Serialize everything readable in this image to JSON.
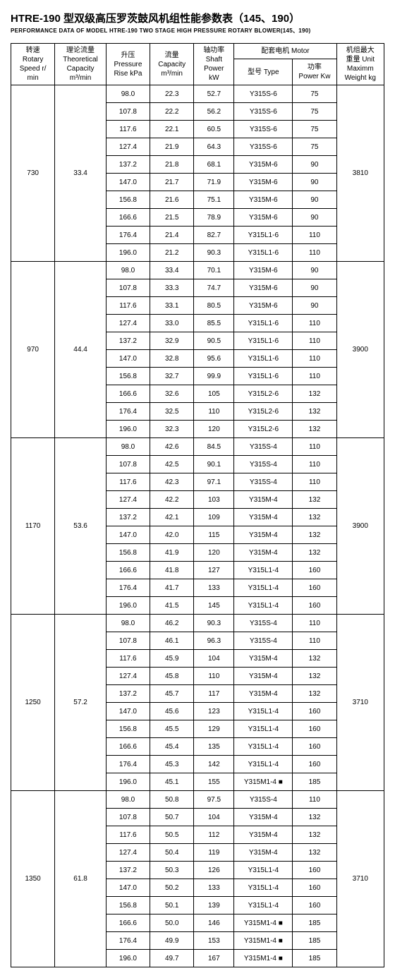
{
  "title_main": "HTRE-190 型双级高压罗茨鼓风机组性能参数表（145、190）",
  "title_sub": "PERFORMANCE DATA OF MODEL HTRE-190 TWO STAGE HIGH PRESSURE ROTARY BLOWER(145、190)",
  "headers": {
    "speed": "转速\nRotary\nSpeed r/\nmin",
    "theoretical": "理论流量\nTheoretical\nCapacity\nm³/min",
    "pressure": "升压\nPressure\nRise kPa",
    "capacity": "流量\nCapacity\nm³/min",
    "shaft": "轴功率\nShaft\nPower\nkW",
    "motor_group": "配套电机 Motor",
    "motor_type": "型号 Type",
    "motor_power": "功率\nPower Kw",
    "weight": "机组最大\n重量 Unit\nMaximm\nWeight kg"
  },
  "groups": [
    {
      "speed": "730",
      "theoretical": "33.4",
      "weight": "3810",
      "rows": [
        {
          "p": "98.0",
          "c": "22.3",
          "s": "52.7",
          "t": "Y315S-6",
          "pw": "75"
        },
        {
          "p": "107.8",
          "c": "22.2",
          "s": "56.2",
          "t": "Y315S-6",
          "pw": "75"
        },
        {
          "p": "117.6",
          "c": "22.1",
          "s": "60.5",
          "t": "Y315S-6",
          "pw": "75"
        },
        {
          "p": "127.4",
          "c": "21.9",
          "s": "64.3",
          "t": "Y315S-6",
          "pw": "75"
        },
        {
          "p": "137.2",
          "c": "21.8",
          "s": "68.1",
          "t": "Y315M-6",
          "pw": "90"
        },
        {
          "p": "147.0",
          "c": "21.7",
          "s": "71.9",
          "t": "Y315M-6",
          "pw": "90"
        },
        {
          "p": "156.8",
          "c": "21.6",
          "s": "75.1",
          "t": "Y315M-6",
          "pw": "90"
        },
        {
          "p": "166.6",
          "c": "21.5",
          "s": "78.9",
          "t": "Y315M-6",
          "pw": "90"
        },
        {
          "p": "176.4",
          "c": "21.4",
          "s": "82.7",
          "t": "Y315L1-6",
          "pw": "110"
        },
        {
          "p": "196.0",
          "c": "21.2",
          "s": "90.3",
          "t": "Y315L1-6",
          "pw": "110"
        }
      ]
    },
    {
      "speed": "970",
      "theoretical": "44.4",
      "weight": "3900",
      "rows": [
        {
          "p": "98.0",
          "c": "33.4",
          "s": "70.1",
          "t": "Y315M-6",
          "pw": "90"
        },
        {
          "p": "107.8",
          "c": "33.3",
          "s": "74.7",
          "t": "Y315M-6",
          "pw": "90"
        },
        {
          "p": "117.6",
          "c": "33.1",
          "s": "80.5",
          "t": "Y315M-6",
          "pw": "90"
        },
        {
          "p": "127.4",
          "c": "33.0",
          "s": "85.5",
          "t": "Y315L1-6",
          "pw": "110"
        },
        {
          "p": "137.2",
          "c": "32.9",
          "s": "90.5",
          "t": "Y315L1-6",
          "pw": "110"
        },
        {
          "p": "147.0",
          "c": "32.8",
          "s": "95.6",
          "t": "Y315L1-6",
          "pw": "110"
        },
        {
          "p": "156.8",
          "c": "32.7",
          "s": "99.9",
          "t": "Y315L1-6",
          "pw": "110"
        },
        {
          "p": "166.6",
          "c": "32.6",
          "s": "105",
          "t": "Y315L2-6",
          "pw": "132"
        },
        {
          "p": "176.4",
          "c": "32.5",
          "s": "110",
          "t": "Y315L2-6",
          "pw": "132"
        },
        {
          "p": "196.0",
          "c": "32.3",
          "s": "120",
          "t": "Y315L2-6",
          "pw": "132"
        }
      ]
    },
    {
      "speed": "1170",
      "theoretical": "53.6",
      "weight": "3900",
      "rows": [
        {
          "p": "98.0",
          "c": "42.6",
          "s": "84.5",
          "t": "Y315S-4",
          "pw": "110"
        },
        {
          "p": "107.8",
          "c": "42.5",
          "s": "90.1",
          "t": "Y315S-4",
          "pw": "110"
        },
        {
          "p": "117.6",
          "c": "42.3",
          "s": "97.1",
          "t": "Y315S-4",
          "pw": "110"
        },
        {
          "p": "127.4",
          "c": "42.2",
          "s": "103",
          "t": "Y315M-4",
          "pw": "132"
        },
        {
          "p": "137.2",
          "c": "42.1",
          "s": "109",
          "t": "Y315M-4",
          "pw": "132"
        },
        {
          "p": "147.0",
          "c": "42.0",
          "s": "115",
          "t": "Y315M-4",
          "pw": "132"
        },
        {
          "p": "156.8",
          "c": "41.9",
          "s": "120",
          "t": "Y315M-4",
          "pw": "132"
        },
        {
          "p": "166.6",
          "c": "41.8",
          "s": "127",
          "t": "Y315L1-4",
          "pw": "160"
        },
        {
          "p": "176.4",
          "c": "41.7",
          "s": "133",
          "t": "Y315L1-4",
          "pw": "160"
        },
        {
          "p": "196.0",
          "c": "41.5",
          "s": "145",
          "t": "Y315L1-4",
          "pw": "160"
        }
      ]
    },
    {
      "speed": "1250",
      "theoretical": "57.2",
      "weight": "3710",
      "rows": [
        {
          "p": "98.0",
          "c": "46.2",
          "s": "90.3",
          "t": "Y315S-4",
          "pw": "110"
        },
        {
          "p": "107.8",
          "c": "46.1",
          "s": "96.3",
          "t": "Y315S-4",
          "pw": "110"
        },
        {
          "p": "117.6",
          "c": "45.9",
          "s": "104",
          "t": "Y315M-4",
          "pw": "132"
        },
        {
          "p": "127.4",
          "c": "45.8",
          "s": "110",
          "t": "Y315M-4",
          "pw": "132"
        },
        {
          "p": "137.2",
          "c": "45.7",
          "s": "117",
          "t": "Y315M-4",
          "pw": "132"
        },
        {
          "p": "147.0",
          "c": "45.6",
          "s": "123",
          "t": "Y315L1-4",
          "pw": "160"
        },
        {
          "p": "156.8",
          "c": "45.5",
          "s": "129",
          "t": "Y315L1-4",
          "pw": "160"
        },
        {
          "p": "166.6",
          "c": "45.4",
          "s": "135",
          "t": "Y315L1-4",
          "pw": "160"
        },
        {
          "p": "176.4",
          "c": "45.3",
          "s": "142",
          "t": "Y315L1-4",
          "pw": "160"
        },
        {
          "p": "196.0",
          "c": "45.1",
          "s": "155",
          "t": "Y315M1-4 ■",
          "pw": "185"
        }
      ]
    },
    {
      "speed": "1350",
      "theoretical": "61.8",
      "weight": "3710",
      "rows": [
        {
          "p": "98.0",
          "c": "50.8",
          "s": "97.5",
          "t": "Y315S-4",
          "pw": "110"
        },
        {
          "p": "107.8",
          "c": "50.7",
          "s": "104",
          "t": "Y315M-4",
          "pw": "132"
        },
        {
          "p": "117.6",
          "c": "50.5",
          "s": "112",
          "t": "Y315M-4",
          "pw": "132"
        },
        {
          "p": "127.4",
          "c": "50.4",
          "s": "119",
          "t": "Y315M-4",
          "pw": "132"
        },
        {
          "p": "137.2",
          "c": "50.3",
          "s": "126",
          "t": "Y315L1-4",
          "pw": "160"
        },
        {
          "p": "147.0",
          "c": "50.2",
          "s": "133",
          "t": "Y315L1-4",
          "pw": "160"
        },
        {
          "p": "156.8",
          "c": "50.1",
          "s": "139",
          "t": "Y315L1-4",
          "pw": "160"
        },
        {
          "p": "166.6",
          "c": "50.0",
          "s": "146",
          "t": "Y315M1-4 ■",
          "pw": "185"
        },
        {
          "p": "176.4",
          "c": "49.9",
          "s": "153",
          "t": "Y315M1-4 ■",
          "pw": "185"
        },
        {
          "p": "196.0",
          "c": "49.7",
          "s": "167",
          "t": "Y315M1-4 ■",
          "pw": "185"
        }
      ]
    }
  ]
}
